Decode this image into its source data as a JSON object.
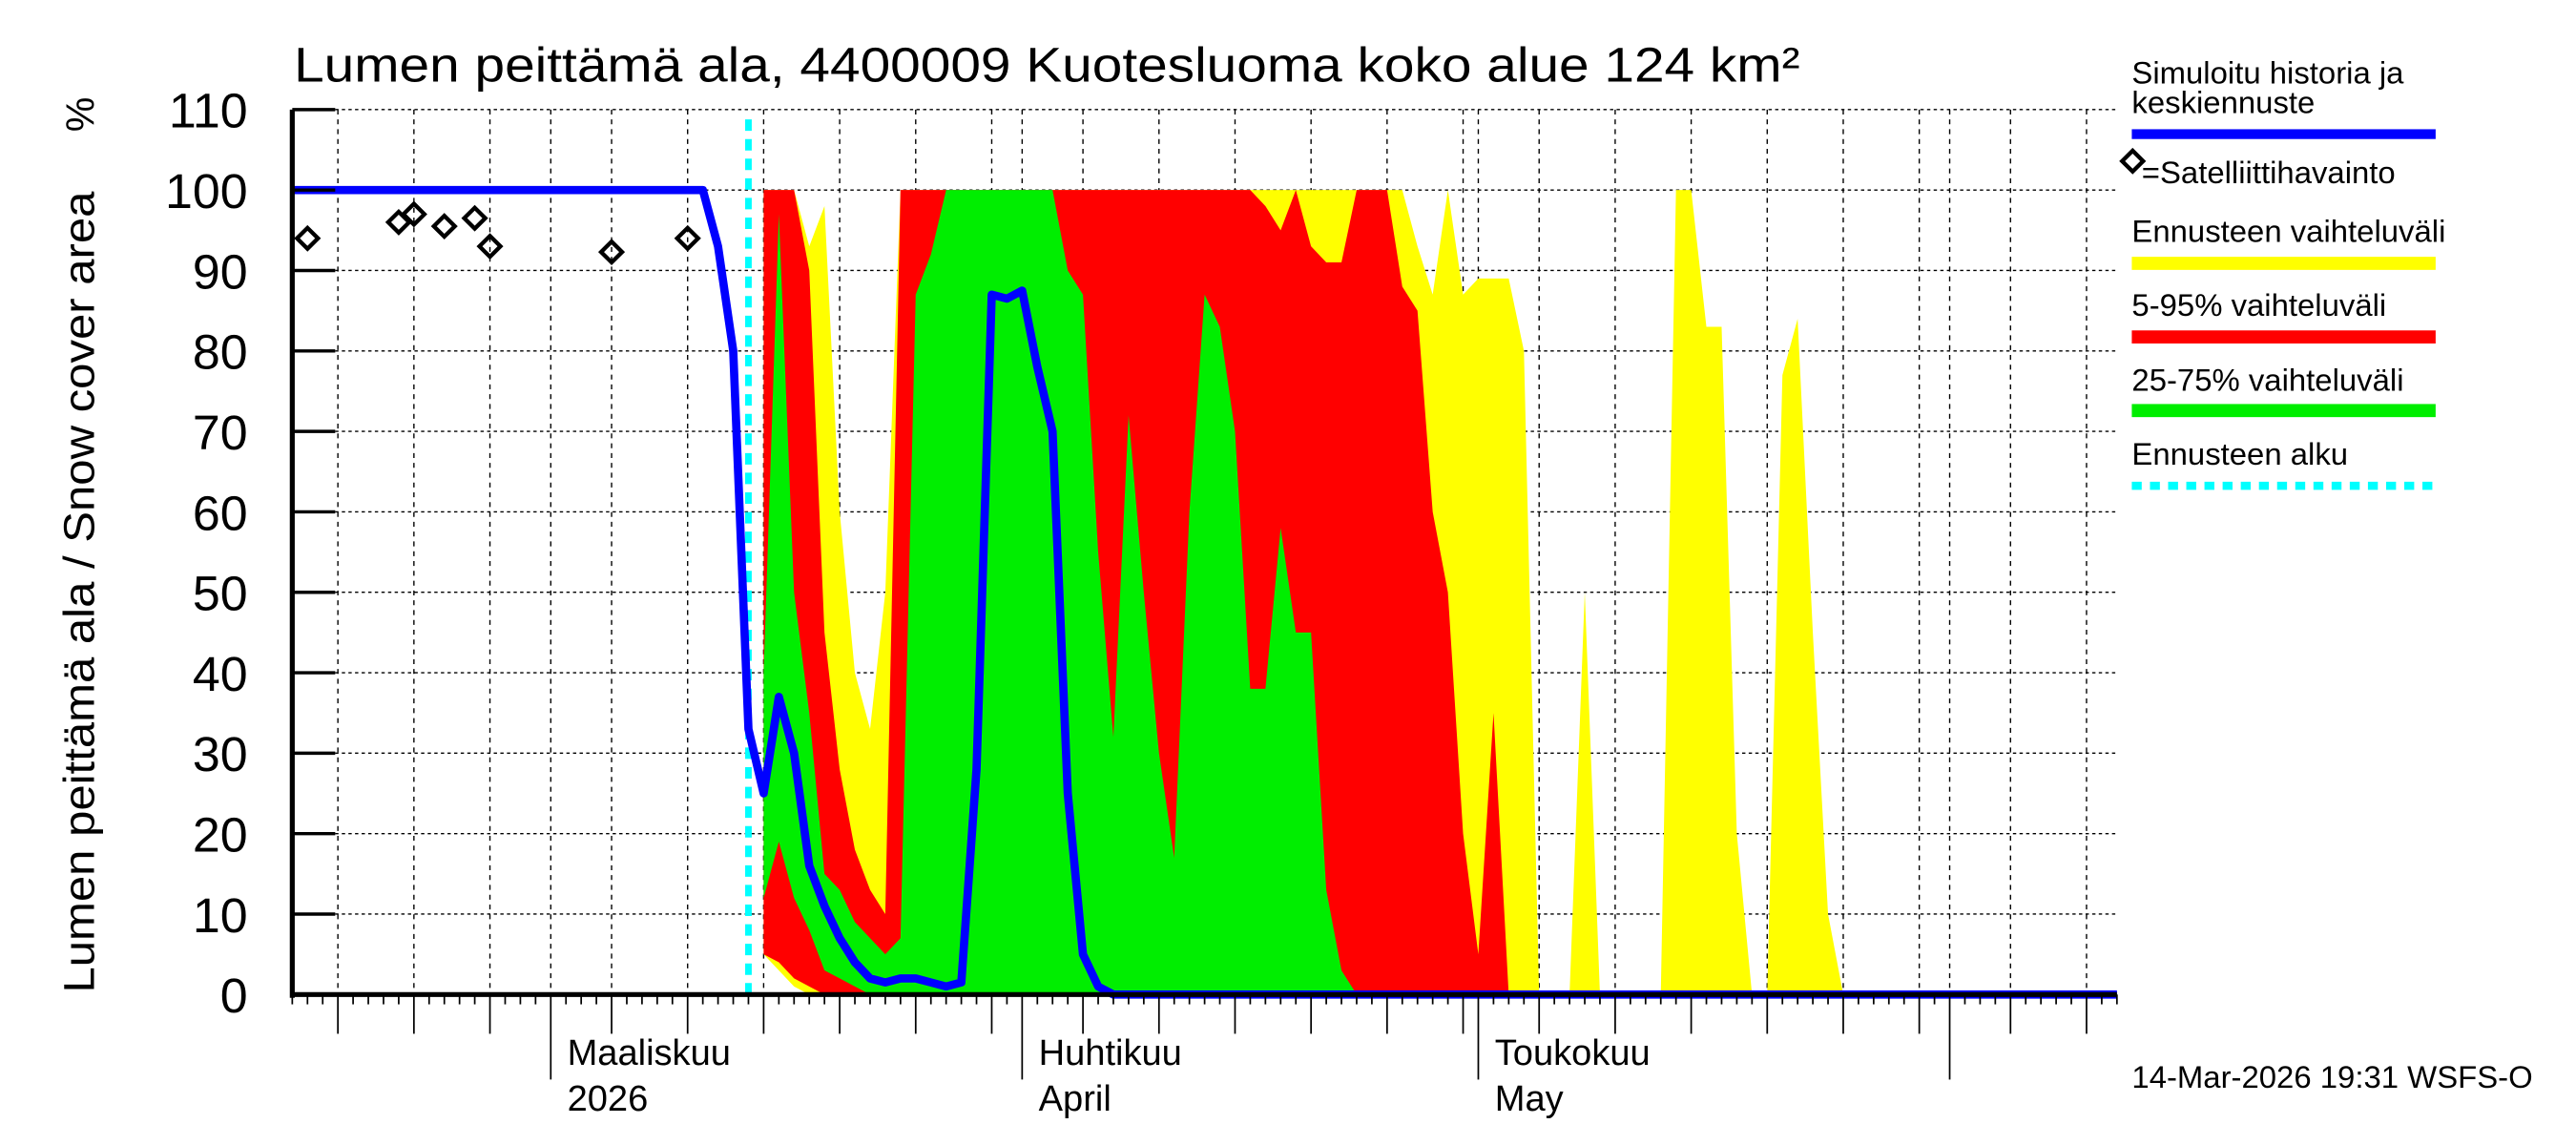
{
  "chart_data": {
    "type": "area",
    "title": "Lumen peittämä ala, 4400009 Kuotesluoma koko alue 124 km²",
    "ylabel": "Lumen peittämä ala / Snow cover area",
    "yunit": "%",
    "ylim": [
      0,
      110
    ],
    "yticks": [
      0,
      10,
      20,
      30,
      40,
      50,
      60,
      70,
      80,
      90,
      100,
      110
    ],
    "xlim": [
      "2026-02-12",
      "2026-06-12"
    ],
    "xtick_labels": [
      {
        "date": "2026-03-01",
        "line1": "Maaliskuu",
        "line2": "2026"
      },
      {
        "date": "2026-04-01",
        "line1": "Huhtikuu",
        "line2": "April"
      },
      {
        "date": "2026-05-01",
        "line1": "Toukokuu",
        "line2": "May"
      }
    ],
    "grid": true,
    "legend_position": "right",
    "forecast_start": "2026-03-14",
    "history": [
      [
        "2026-02-12",
        100
      ],
      [
        "2026-03-11",
        100
      ],
      [
        "2026-03-12",
        93
      ],
      [
        "2026-03-13",
        80
      ],
      [
        "2026-03-14",
        33
      ]
    ],
    "observations": [
      [
        "2026-02-13",
        94
      ],
      [
        "2026-02-19",
        96
      ],
      [
        "2026-02-20",
        97
      ],
      [
        "2026-02-22",
        95.5
      ],
      [
        "2026-02-24",
        96.5
      ],
      [
        "2026-02-25",
        93
      ],
      [
        "2026-03-05",
        92.3
      ],
      [
        "2026-03-10",
        94
      ]
    ],
    "forecast_start_date": "2026-03-15",
    "median": [
      25,
      37,
      30,
      16,
      11,
      7,
      4,
      2,
      1.5,
      2,
      2,
      1.5,
      1,
      1.5,
      28,
      87,
      86.5,
      87.5,
      78,
      70,
      25,
      5,
      1,
      0,
      0,
      0,
      0,
      0,
      0,
      0,
      0,
      0,
      0,
      0,
      0,
      0,
      0,
      0,
      0,
      0,
      0,
      0,
      0,
      0,
      0,
      0,
      0,
      0,
      0,
      0,
      0,
      0,
      0,
      0,
      0,
      0,
      0,
      0,
      0,
      0,
      0,
      0,
      0,
      0,
      0,
      0,
      0,
      0,
      0,
      0,
      0,
      0,
      0,
      0,
      0,
      0,
      0,
      0,
      0,
      0,
      0,
      0,
      0,
      0,
      0,
      0,
      0,
      0,
      0,
      0,
      0,
      0,
      0
    ],
    "bands": {
      "yellow_hi": [
        100,
        100,
        100,
        93,
        98,
        60,
        40,
        33,
        50,
        100,
        100,
        100,
        100,
        100,
        100,
        100,
        100,
        100,
        100,
        100,
        100,
        100,
        100,
        100,
        100,
        100,
        100,
        100,
        100,
        100,
        100,
        100,
        100,
        100,
        100,
        100,
        100,
        100,
        100,
        100,
        100,
        100,
        100,
        93,
        87,
        100,
        87,
        89,
        89,
        89,
        80,
        0,
        0,
        0,
        50,
        0,
        0,
        0,
        0,
        0,
        100,
        100,
        83,
        83,
        20,
        0,
        0,
        77,
        84,
        45,
        10,
        0
      ],
      "yellow_lo": [
        5,
        3,
        1,
        0
      ],
      "red_hi": [
        100,
        100,
        100,
        90,
        45,
        28,
        18,
        13,
        10,
        100,
        100,
        100,
        100,
        100,
        100,
        100,
        100,
        100,
        100,
        100,
        100,
        100,
        100,
        100,
        100,
        100,
        100,
        100,
        100,
        100,
        100,
        100,
        100,
        98,
        95,
        100,
        93,
        91,
        91,
        100,
        100,
        100,
        88,
        85,
        60,
        50,
        20,
        5,
        35,
        0
      ],
      "red_lo": [
        5,
        4,
        2,
        1,
        0
      ],
      "green_hi": [
        40,
        97,
        50,
        35,
        15,
        13,
        9,
        7,
        5,
        7,
        87,
        92,
        100,
        100,
        100,
        100,
        100,
        100,
        100,
        100,
        90,
        87,
        55,
        32,
        72,
        50,
        30,
        17,
        60,
        87,
        83,
        70,
        38,
        38,
        58,
        45,
        45,
        13,
        3,
        0
      ],
      "green_lo": [
        12,
        19,
        12,
        8,
        3,
        2,
        1,
        0
      ]
    },
    "legend": [
      {
        "label": "Simuloitu historia ja keskiennuste",
        "line1": "Simuloitu historia ja",
        "line2": "keskiennuste",
        "color": "#0000ff"
      },
      {
        "label": "=Satelliittihavainto",
        "color": "#000000"
      },
      {
        "label": "Ennusteen vaihteluväli",
        "color": "#ffff00"
      },
      {
        "label": "5-95% vaihteluväli",
        "color": "#ff0000"
      },
      {
        "label": "25-75% vaihteluväli",
        "color": "#00ee00"
      },
      {
        "label": "Ennusteen alku",
        "color": "#00ffff"
      }
    ]
  },
  "footer": "14-Mar-2026 19:31 WSFS-O"
}
